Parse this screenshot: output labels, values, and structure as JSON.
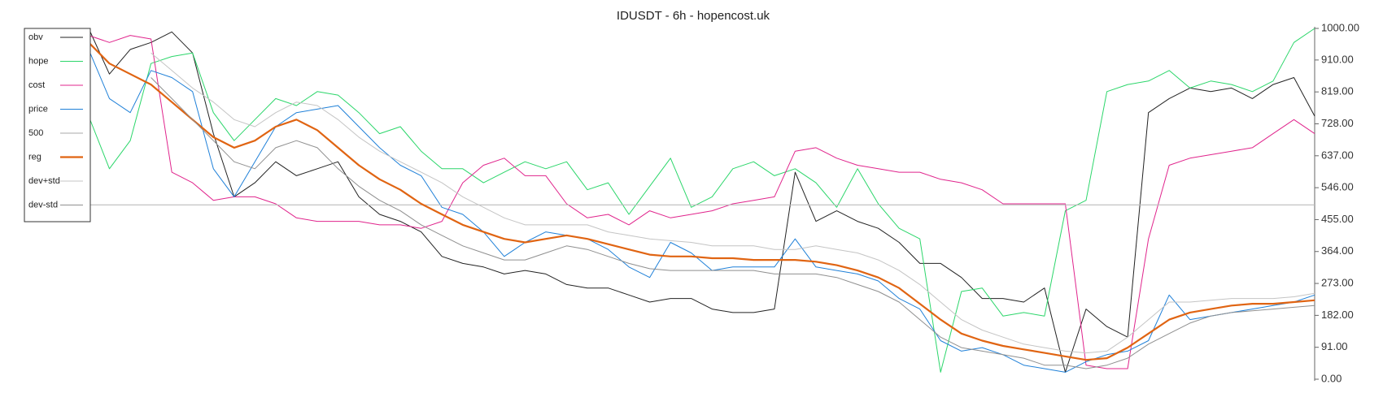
{
  "chart_data": {
    "type": "line",
    "title": "IDUSDT - 6h - hopencost.uk",
    "ylim": [
      0,
      1000
    ],
    "yticks": [
      {
        "value": 0,
        "label": "0.00"
      },
      {
        "value": 91,
        "label": "91.00"
      },
      {
        "value": 182,
        "label": "182.00"
      },
      {
        "value": 273,
        "label": "273.00"
      },
      {
        "value": 364,
        "label": "364.00"
      },
      {
        "value": 455,
        "label": "455.00"
      },
      {
        "value": 546,
        "label": "546.00"
      },
      {
        "value": 637,
        "label": "637.00"
      },
      {
        "value": 728,
        "label": "728.00"
      },
      {
        "value": 819,
        "label": "819.00"
      },
      {
        "value": 910,
        "label": "910.00"
      },
      {
        "value": 1000,
        "label": "1000.00"
      }
    ],
    "legend": "upper left",
    "series": [
      {
        "name": "obv",
        "color": "#222222",
        "width": 1,
        "values": [
          1000,
          870,
          940,
          960,
          990,
          930,
          700,
          520,
          560,
          620,
          580,
          600,
          620,
          520,
          470,
          450,
          420,
          350,
          330,
          320,
          300,
          310,
          300,
          270,
          260,
          260,
          240,
          220,
          230,
          230,
          200,
          190,
          190,
          200,
          590,
          450,
          480,
          450,
          430,
          390,
          330,
          330,
          290,
          230,
          230,
          220,
          260,
          20,
          200,
          150,
          120,
          760,
          800,
          830,
          820,
          830,
          800,
          840,
          860,
          750
        ]
      },
      {
        "name": "hope",
        "color": "#2bd66a",
        "width": 1,
        "values": [
          750,
          600,
          680,
          900,
          920,
          930,
          760,
          680,
          740,
          800,
          780,
          820,
          810,
          760,
          700,
          720,
          650,
          600,
          600,
          560,
          590,
          620,
          600,
          620,
          540,
          560,
          470,
          550,
          630,
          490,
          520,
          600,
          620,
          580,
          600,
          560,
          490,
          600,
          500,
          430,
          400,
          20,
          250,
          260,
          180,
          190,
          180,
          480,
          510,
          820,
          840,
          850,
          880,
          830,
          850,
          840,
          820,
          850,
          960,
          1000
        ]
      },
      {
        "name": "cost",
        "color": "#e0248c",
        "width": 1,
        "values": [
          980,
          960,
          980,
          970,
          590,
          560,
          510,
          520,
          520,
          500,
          460,
          450,
          450,
          450,
          440,
          440,
          430,
          450,
          560,
          610,
          630,
          580,
          580,
          500,
          460,
          470,
          440,
          480,
          460,
          470,
          480,
          500,
          510,
          520,
          650,
          660,
          630,
          610,
          600,
          590,
          590,
          570,
          560,
          540,
          500,
          500,
          500,
          500,
          40,
          30,
          30,
          400,
          610,
          630,
          640,
          650,
          660,
          700,
          740,
          700
        ]
      },
      {
        "name": "price",
        "color": "#1f80d8",
        "width": 1,
        "values": [
          940,
          800,
          760,
          880,
          860,
          820,
          600,
          520,
          620,
          720,
          760,
          770,
          780,
          720,
          660,
          610,
          580,
          490,
          470,
          420,
          350,
          390,
          420,
          410,
          400,
          370,
          320,
          290,
          390,
          360,
          310,
          320,
          320,
          320,
          400,
          320,
          310,
          300,
          280,
          230,
          200,
          110,
          80,
          90,
          70,
          40,
          30,
          20,
          50,
          70,
          80,
          110,
          240,
          170,
          180,
          190,
          200,
          210,
          220,
          240
        ]
      },
      {
        "name": "500",
        "color": "#bbbbbb",
        "width": 1.2,
        "values": [
          497,
          497,
          497,
          497,
          497,
          497,
          497,
          497,
          497,
          497,
          497,
          497,
          497,
          497,
          497,
          497,
          497,
          497,
          497,
          497,
          497,
          497,
          497,
          497,
          497,
          497,
          497,
          497,
          497,
          497,
          497,
          497,
          497,
          497,
          497,
          497,
          497,
          497,
          497,
          497,
          497,
          497,
          497,
          497,
          497,
          497,
          497,
          497,
          497,
          497,
          497,
          497,
          497,
          497,
          497,
          497,
          497,
          497,
          497,
          497
        ]
      },
      {
        "name": "reg",
        "color": "#e06412",
        "width": 2.2,
        "values": [
          960,
          900,
          870,
          840,
          790,
          740,
          690,
          660,
          680,
          720,
          740,
          710,
          660,
          610,
          570,
          540,
          500,
          470,
          440,
          420,
          400,
          390,
          400,
          410,
          400,
          385,
          370,
          355,
          350,
          350,
          345,
          345,
          340,
          340,
          340,
          335,
          325,
          310,
          290,
          260,
          215,
          170,
          130,
          110,
          95,
          85,
          75,
          65,
          55,
          60,
          90,
          130,
          170,
          190,
          200,
          210,
          215,
          215,
          220,
          225
        ]
      },
      {
        "name": "dev+std",
        "color": "#c4c4c4",
        "width": 1,
        "values": [
          null,
          null,
          null,
          930,
          880,
          830,
          790,
          740,
          720,
          760,
          790,
          780,
          740,
          690,
          650,
          620,
          590,
          560,
          520,
          490,
          460,
          440,
          440,
          440,
          440,
          420,
          410,
          400,
          395,
          390,
          380,
          380,
          380,
          370,
          370,
          380,
          370,
          360,
          340,
          310,
          270,
          220,
          170,
          140,
          120,
          100,
          90,
          80,
          75,
          80,
          120,
          170,
          220,
          220,
          225,
          230,
          230,
          230,
          235,
          245
        ]
      },
      {
        "name": "dev-std",
        "color": "#8f8f8f",
        "width": 1,
        "values": [
          null,
          null,
          null,
          860,
          800,
          740,
          680,
          620,
          600,
          660,
          680,
          660,
          600,
          550,
          510,
          480,
          440,
          410,
          380,
          360,
          340,
          340,
          360,
          380,
          370,
          350,
          330,
          315,
          310,
          310,
          310,
          310,
          310,
          300,
          300,
          300,
          290,
          270,
          250,
          220,
          170,
          120,
          90,
          80,
          70,
          60,
          40,
          40,
          30,
          40,
          60,
          100,
          130,
          160,
          180,
          190,
          195,
          200,
          205,
          210
        ]
      }
    ]
  }
}
